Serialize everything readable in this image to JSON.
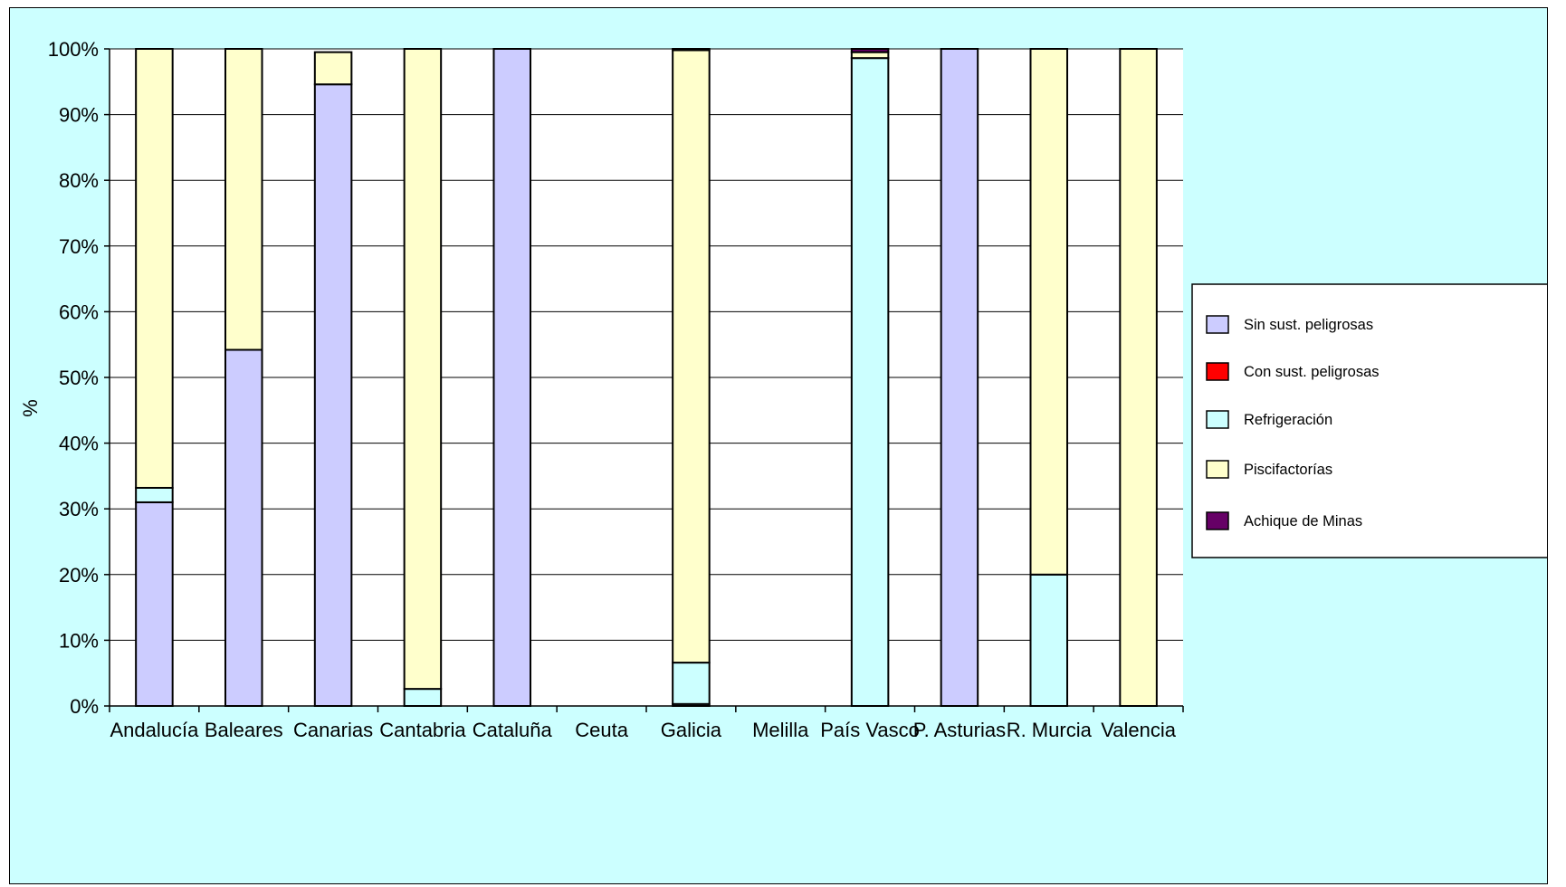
{
  "chart_data": {
    "type": "bar",
    "stacked": true,
    "percent_stacked": true,
    "title": "",
    "xlabel": "",
    "ylabel": "%",
    "ylim": [
      0,
      100
    ],
    "yticks": [
      "0%",
      "10%",
      "20%",
      "30%",
      "40%",
      "50%",
      "60%",
      "70%",
      "80%",
      "90%",
      "100%"
    ],
    "grid": true,
    "legend_position": "right",
    "categories": [
      "Andalucía",
      "Baleares",
      "Canarias",
      "Cantabria",
      "Cataluña",
      "Ceuta",
      "Galicia",
      "Melilla",
      "País Vasco",
      "P. Asturias",
      "R. Murcia",
      "Valencia"
    ],
    "series": [
      {
        "name": "Sin sust. peligrosas",
        "color": "#ccccff",
        "values": [
          31,
          54.2,
          94.6,
          0,
          100,
          0,
          0.3,
          0,
          0,
          100,
          0,
          0
        ]
      },
      {
        "name": "Con sust. peligrosas",
        "color": "#ff0000",
        "values": [
          0,
          0,
          0,
          0,
          0,
          0,
          0,
          0,
          0,
          0,
          0,
          0
        ]
      },
      {
        "name": "Refrigeración",
        "color": "#ccffff",
        "values": [
          2.2,
          0,
          0,
          2.6,
          0,
          0,
          6.3,
          0,
          98.6,
          0,
          20,
          0
        ]
      },
      {
        "name": "Piscifactorías",
        "color": "#ffffcc",
        "values": [
          66.8,
          45.8,
          4.9,
          97.4,
          0,
          0,
          93.2,
          0,
          0.9,
          0,
          80,
          100
        ]
      },
      {
        "name": "Achique de Minas",
        "color": "#660066",
        "values": [
          0,
          0,
          0,
          0,
          0,
          0,
          0.2,
          0,
          0.5,
          0,
          0,
          0
        ]
      }
    ]
  }
}
